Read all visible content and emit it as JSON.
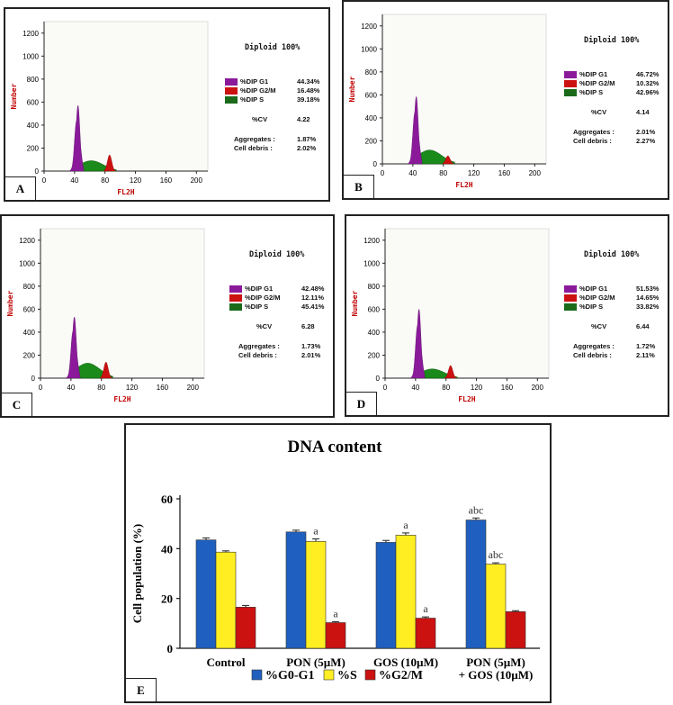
{
  "histograms": [
    {
      "label": "A",
      "y_axis_label": "Number",
      "x_axis_label": "FL2H",
      "y_ticks": [
        "0",
        "200",
        "400",
        "600",
        "800",
        "1000",
        "1200"
      ],
      "x_ticks": [
        "0",
        "40",
        "80",
        "120",
        "160",
        "200"
      ],
      "diploid": "Diploid 100%",
      "g1_label": "%DIP G1",
      "g1": "44.34%",
      "g2m_label": "%DIP G2/M",
      "g2m": "16.48%",
      "s_label": "%DIP S",
      "s": "39.18%",
      "cv_label": "%CV",
      "cv": "4.22",
      "agg_label": "Aggregates :",
      "agg": "1.87%",
      "debris_label": "Cell debris :",
      "debris": "2.02%",
      "g1_peak": 590,
      "s_peak": 90,
      "g2m_peak": 140
    },
    {
      "label": "B",
      "y_axis_label": "Number",
      "x_axis_label": "FL2H",
      "y_ticks": [
        "0",
        "200",
        "400",
        "600",
        "800",
        "1000",
        "1200"
      ],
      "x_ticks": [
        "0",
        "40",
        "80",
        "120",
        "160",
        "200"
      ],
      "diploid": "Diploid 100%",
      "g1_label": "%DIP G1",
      "g1": "46.72%",
      "g2m_label": "%DIP G2/M",
      "g2m": "10.32%",
      "s_label": "%DIP S",
      "s": "42.96%",
      "cv_label": "%CV",
      "cv": "4.14",
      "agg_label": "Aggregates :",
      "agg": "2.01%",
      "debris_label": "Cell debris :",
      "debris": "2.27%",
      "g1_peak": 605,
      "s_peak": 120,
      "g2m_peak": 70
    },
    {
      "label": "C",
      "y_axis_label": "Number",
      "x_axis_label": "FL2H",
      "y_ticks": [
        "0",
        "200",
        "400",
        "600",
        "800",
        "1000",
        "1200"
      ],
      "x_ticks": [
        "0",
        "40",
        "80",
        "120",
        "160",
        "200"
      ],
      "diploid": "Diploid 100%",
      "g1_label": "%DIP G1",
      "g1": "42.48%",
      "g2m_label": "%DIP G2/M",
      "g2m": "12.11%",
      "s_label": "%DIP S",
      "s": "45.41%",
      "cv_label": "%CV",
      "cv": "6.28",
      "agg_label": "Aggregates :",
      "agg": "1.73%",
      "debris_label": "Cell debris :",
      "debris": "2.01%",
      "g1_peak": 550,
      "s_peak": 130,
      "g2m_peak": 140
    },
    {
      "label": "D",
      "y_axis_label": "Number",
      "x_axis_label": "FL2H",
      "y_ticks": [
        "0",
        "200",
        "400",
        "600",
        "800",
        "1000",
        "1200"
      ],
      "x_ticks": [
        "0",
        "40",
        "80",
        "120",
        "160",
        "200"
      ],
      "diploid": "Diploid 100%",
      "g1_label": "%DIP G1",
      "g1": "51.53%",
      "g2m_label": "%DIP G2/M",
      "g2m": "14.65%",
      "s_label": "%DIP S",
      "s": "33.82%",
      "cv_label": "%CV",
      "cv": "6.44",
      "agg_label": "Aggregates :",
      "agg": "1.72%",
      "debris_label": "Cell debris :",
      "debris": "2.11%",
      "g1_peak": 620,
      "s_peak": 80,
      "g2m_peak": 110
    }
  ],
  "chart_data": {
    "type": "bar",
    "label": "E",
    "title": "DNA content",
    "ylabel": "Cell population (%)",
    "xlabel": "",
    "ylim": [
      0,
      60
    ],
    "y_ticks": [
      "0",
      "20",
      "40",
      "60"
    ],
    "categories": [
      "Control",
      "PON (5µM)",
      "GOS (10µM)",
      "PON (5µM)\n+ GOS (10µM)"
    ],
    "category_lines": [
      [
        "Control"
      ],
      [
        "PON (5µM)"
      ],
      [
        "GOS (10µM)"
      ],
      [
        "PON (5µM)",
        "+ GOS (10µM)"
      ]
    ],
    "series": [
      {
        "name": "%G0-G1",
        "color": "#1f5fbf",
        "values": [
          43.5,
          46.7,
          42.5,
          51.5
        ],
        "errors": [
          0.8,
          0.7,
          0.8,
          0.8
        ],
        "annotations": [
          "",
          "",
          "",
          "abc"
        ]
      },
      {
        "name": "%S",
        "color": "#ffee22",
        "values": [
          38.6,
          42.9,
          45.4,
          33.8
        ],
        "errors": [
          0.5,
          1.0,
          0.9,
          0.5
        ],
        "annotations": [
          "",
          "a",
          "a",
          "abc"
        ]
      },
      {
        "name": "%G2/M",
        "color": "#cc1111",
        "values": [
          16.5,
          10.3,
          12.1,
          14.7
        ],
        "errors": [
          0.7,
          0.4,
          0.5,
          0.4
        ],
        "annotations": [
          "",
          "a",
          "a",
          ""
        ]
      }
    ]
  }
}
